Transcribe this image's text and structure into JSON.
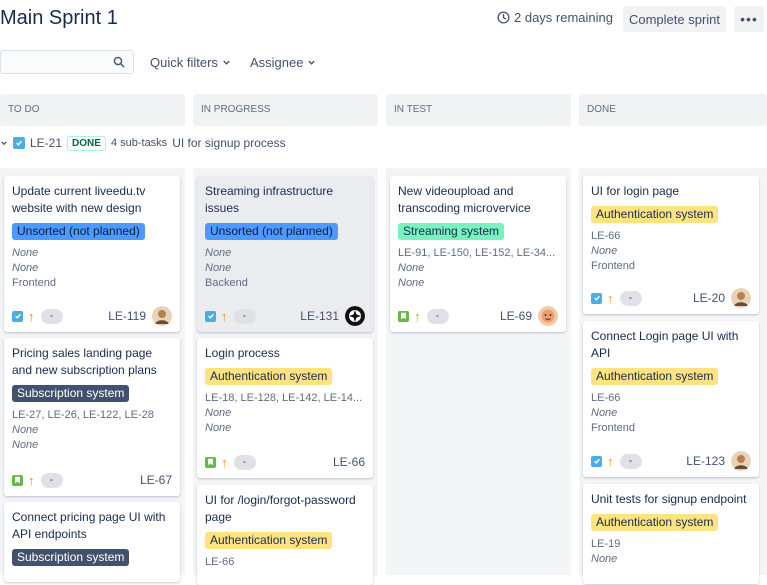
{
  "header": {
    "title": "Main Sprint 1",
    "remaining": "2 days remaining",
    "complete_label": "Complete sprint",
    "more_label": "•••"
  },
  "toolbar": {
    "search_placeholder": "",
    "quick_filters": "Quick filters",
    "assignee": "Assignee"
  },
  "columns": [
    {
      "label": "TO DO"
    },
    {
      "label": "IN PROGRESS"
    },
    {
      "label": "IN TEST"
    },
    {
      "label": "DONE"
    }
  ],
  "swimlane": {
    "key": "LE-21",
    "status": "DONE",
    "subtasks": "4 sub-tasks",
    "title": "UI for signup process"
  },
  "cards": {
    "todo": [
      {
        "title": "Update current liveedu.tv website with new design",
        "epic": "Unsorted (not planned)",
        "line1": "None",
        "line2": "None",
        "line3": "Frontend",
        "priority": "-",
        "key": "LE-119"
      },
      {
        "title": "Pricing sales landing page and new subscription plans",
        "epic": "Subscription system",
        "line1": "LE-27, LE-26, LE-122, LE-28",
        "line2": "None",
        "line3": "None",
        "priority": "-",
        "key": "LE-67"
      },
      {
        "title": "Connect pricing page UI with API endpoints",
        "epic": "Subscription system"
      }
    ],
    "inprogress": [
      {
        "title": "Streaming infrastructure issues",
        "epic": "Unsorted (not planned)",
        "line1": "None",
        "line2": "None",
        "line3": "Backend",
        "priority": "-",
        "key": "LE-131"
      },
      {
        "title": "Login process",
        "epic": "Authentication system",
        "line1": "LE-18, LE-128, LE-142, LE-14...",
        "line2": "None",
        "line3": "None",
        "priority": "-",
        "key": "LE-66"
      },
      {
        "title": "UI for /login/forgot-password page",
        "epic": "Authentication system",
        "line1": "LE-66"
      }
    ],
    "intest": [
      {
        "title": "New videoupload and transcoding microvervice",
        "epic": "Streaming system",
        "line1": "LE-91, LE-150, LE-152, LE-34...",
        "line2": "None",
        "line3": "None",
        "priority": "-",
        "key": "LE-69"
      }
    ],
    "done": [
      {
        "title": "UI for login page",
        "epic": "Authentication system",
        "line1": "LE-66",
        "line2": "None",
        "line3": "Frontend",
        "priority": "-",
        "key": "LE-20"
      },
      {
        "title": "Connect Login page UI with API",
        "epic": "Authentication system",
        "line1": "LE-66",
        "line2": "None",
        "line3": "Frontend",
        "priority": "-",
        "key": "LE-123"
      },
      {
        "title": "Unit tests for signup endpoint",
        "epic": "Authentication system",
        "line1": "LE-19",
        "line2": "None"
      }
    ]
  },
  "colors": {
    "accent": "#0052cc",
    "column_bg": "#f4f5f7",
    "epic_blue": "#4c9aff",
    "epic_yellow": "#ffe380",
    "epic_green": "#79f2c0",
    "epic_dark": "#42526e"
  }
}
